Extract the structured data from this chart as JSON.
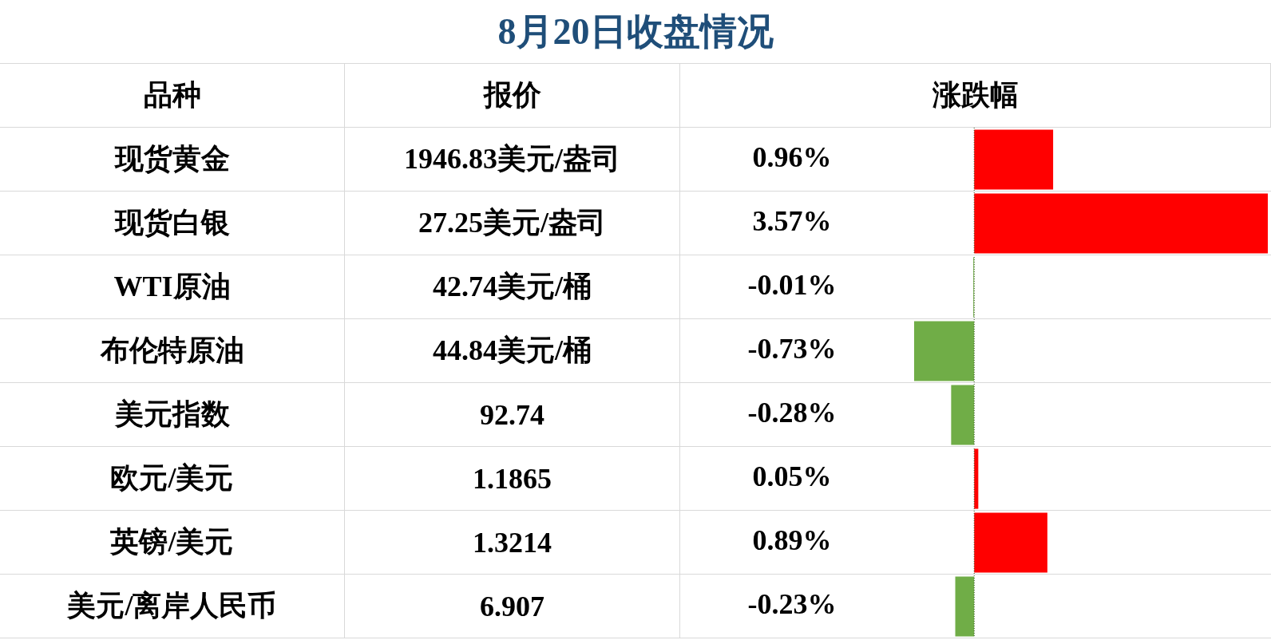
{
  "chart_data": {
    "type": "bar",
    "orientation": "horizontal",
    "title": "8月20日收盘情况",
    "ylabel": "品种",
    "xlabel": "涨跌幅",
    "categories": [
      "现货黄金",
      "现货白银",
      "WTI原油",
      "布伦特原油",
      "美元指数",
      "欧元/美元",
      "英镑/美元",
      "美元/离岸人民币"
    ],
    "values": [
      0.96,
      3.57,
      -0.01,
      -0.73,
      -0.28,
      0.05,
      0.89,
      -0.23
    ],
    "colors": [
      "#ff0000",
      "#ff0000",
      "#70ad47",
      "#70ad47",
      "#70ad47",
      "#ff0000",
      "#ff0000",
      "#70ad47"
    ],
    "value_labels": [
      "0.96%",
      "3.57%",
      "-0.01%",
      "-0.73%",
      "-0.28%",
      "0.05%",
      "0.89%",
      "-0.23%"
    ],
    "ref_lines": [
      {
        "axis": "x",
        "value": 0,
        "color": "#375623",
        "line_style": "dotted"
      }
    ],
    "annotations": [
      "报价",
      "1946.83美元/盎司",
      "27.25美元/盎司",
      "42.74美元/桶",
      "44.84美元/桶",
      "92.74",
      "1.1865",
      "1.3214",
      "6.907"
    ],
    "legend": false
  }
}
